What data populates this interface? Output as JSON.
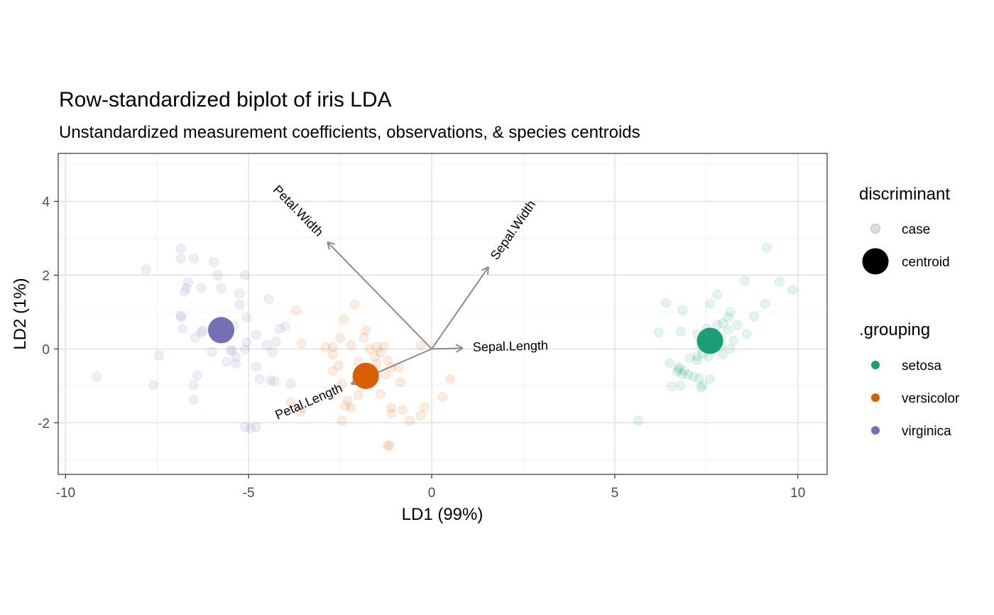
{
  "chart_data": {
    "type": "scatter",
    "title": "Row-standardized biplot of iris LDA",
    "subtitle": "Unstandardized measurement coefficients, observations, & species centroids",
    "xlabel": "LD1 (99%)",
    "ylabel": "LD2 (1%)",
    "xlim": [
      -10.2,
      10.8
    ],
    "ylim": [
      -3.4,
      5.3
    ],
    "x_ticks": [
      -10,
      -5,
      0,
      5,
      10
    ],
    "x_tick_labels": [
      "-10",
      "-5",
      "0",
      "5",
      "10"
    ],
    "y_ticks": [
      -2,
      0,
      2,
      4
    ],
    "y_tick_labels": [
      "-2",
      "0",
      "2",
      "4"
    ],
    "grid": true,
    "legend_position": "right",
    "legends": [
      {
        "title": "discriminant",
        "entries": [
          {
            "label": "case",
            "shape": "small-point",
            "color": "#bdbdbd"
          },
          {
            "label": "centroid",
            "shape": "large-point",
            "color": "#000000"
          }
        ]
      },
      {
        "title": ".grouping",
        "entries": [
          {
            "label": "setosa",
            "color": "#1b9e77"
          },
          {
            "label": "versicolor",
            "color": "#d95f02"
          },
          {
            "label": "virginica",
            "color": "#7570b3"
          }
        ]
      }
    ],
    "colors": {
      "setosa": "#1b9e77",
      "versicolor": "#d95f02",
      "virginica": "#7570b3",
      "arrow": "#8c8c8c"
    },
    "centroids": [
      {
        "group": "setosa",
        "x": 7.6,
        "y": 0.22
      },
      {
        "group": "versicolor",
        "x": -1.8,
        "y": -0.73
      },
      {
        "group": "virginica",
        "x": -5.75,
        "y": 0.51
      }
    ],
    "arrows": [
      {
        "label": "Petal.Width",
        "x": -2.85,
        "y": 2.9
      },
      {
        "label": "Sepal.Width",
        "x": 1.55,
        "y": 2.22
      },
      {
        "label": "Sepal.Length",
        "x": 0.85,
        "y": 0.02
      },
      {
        "label": "Petal.Length",
        "x": -2.2,
        "y": -0.95
      }
    ],
    "series": [
      {
        "group": "setosa",
        "points": [
          [
            9.15,
            2.75
          ],
          [
            9.5,
            1.82
          ],
          [
            9.85,
            1.6
          ],
          [
            8.55,
            1.85
          ],
          [
            7.8,
            1.47
          ],
          [
            7.6,
            1.22
          ],
          [
            6.4,
            1.25
          ],
          [
            6.85,
            1.05
          ],
          [
            9.1,
            1.22
          ],
          [
            8.15,
            1.0
          ],
          [
            8.1,
            0.85
          ],
          [
            7.95,
            0.7
          ],
          [
            8.1,
            0.52
          ],
          [
            7.8,
            0.65
          ],
          [
            8.35,
            0.65
          ],
          [
            8.8,
            0.88
          ],
          [
            6.2,
            0.45
          ],
          [
            6.8,
            0.47
          ],
          [
            7.25,
            0.4
          ],
          [
            7.5,
            0.55
          ],
          [
            7.7,
            0.4
          ],
          [
            7.8,
            0.25
          ],
          [
            7.9,
            0.3
          ],
          [
            8.25,
            0.22
          ],
          [
            8.6,
            0.4
          ],
          [
            7.4,
            0.17
          ],
          [
            7.35,
            0.05
          ],
          [
            7.9,
            0.08
          ],
          [
            7.4,
            -0.12
          ],
          [
            7.55,
            -0.2
          ],
          [
            7.25,
            -0.3
          ],
          [
            6.5,
            -0.38
          ],
          [
            6.75,
            -0.5
          ],
          [
            7.05,
            -0.25
          ],
          [
            7.25,
            -0.2
          ],
          [
            7.95,
            -0.15
          ],
          [
            6.7,
            -0.62
          ],
          [
            6.85,
            -0.68
          ],
          [
            7.0,
            -0.7
          ],
          [
            7.3,
            -0.8
          ],
          [
            7.4,
            -0.98
          ],
          [
            7.35,
            -1.05
          ],
          [
            6.55,
            -1.02
          ],
          [
            6.8,
            -1.0
          ],
          [
            7.6,
            -0.82
          ],
          [
            5.65,
            -1.95
          ],
          [
            6.75,
            -0.55
          ],
          [
            6.9,
            -0.6
          ],
          [
            7.15,
            -0.75
          ],
          [
            8.15,
            0.0
          ]
        ]
      },
      {
        "group": "versicolor",
        "points": [
          [
            -3.7,
            1.05
          ],
          [
            -2.4,
            0.8
          ],
          [
            -2.1,
            1.2
          ],
          [
            -1.8,
            0.5
          ],
          [
            -1.85,
            0.3
          ],
          [
            -2.5,
            0.3
          ],
          [
            -2.9,
            0.05
          ],
          [
            -2.7,
            0.05
          ],
          [
            -3.55,
            0.15
          ],
          [
            -2.2,
            0.1
          ],
          [
            -1.5,
            0.05
          ],
          [
            -1.3,
            0.08
          ],
          [
            -0.3,
            0.1
          ],
          [
            -1.4,
            -0.1
          ],
          [
            -1.2,
            -0.3
          ],
          [
            -1.5,
            -0.4
          ],
          [
            -2.0,
            -0.35
          ],
          [
            -1.6,
            -0.55
          ],
          [
            -1.1,
            -0.5
          ],
          [
            -0.9,
            -0.5
          ],
          [
            -2.7,
            -0.15
          ],
          [
            -2.55,
            -0.45
          ],
          [
            -2.7,
            -0.6
          ],
          [
            -2.45,
            -0.95
          ],
          [
            -1.7,
            -0.55
          ],
          [
            -1.25,
            -0.7
          ],
          [
            -0.85,
            -0.9
          ],
          [
            -1.4,
            -1.22
          ],
          [
            -2.0,
            -1.25
          ],
          [
            -2.3,
            -1.4
          ],
          [
            -2.2,
            -1.6
          ],
          [
            -2.35,
            -1.55
          ],
          [
            -2.45,
            -1.95
          ],
          [
            -1.1,
            -1.6
          ],
          [
            -1.1,
            -1.75
          ],
          [
            -0.8,
            -1.65
          ],
          [
            -0.6,
            -1.95
          ],
          [
            -0.3,
            -1.8
          ],
          [
            -0.2,
            -1.58
          ],
          [
            0.3,
            -1.3
          ],
          [
            0.5,
            -0.82
          ],
          [
            -1.15,
            -2.62
          ],
          [
            -1.2,
            -2.62
          ],
          [
            -3.55,
            -1.6
          ],
          [
            -3.85,
            -1.45
          ],
          [
            -3.6,
            -1.7
          ],
          [
            -4.3,
            -0.88
          ],
          [
            -1.55,
            -0.2
          ],
          [
            -1.7,
            0.0
          ],
          [
            -2.05,
            -0.8
          ]
        ]
      },
      {
        "group": "virginica",
        "points": [
          [
            -6.85,
            2.72
          ],
          [
            -6.85,
            2.45
          ],
          [
            -6.5,
            2.45
          ],
          [
            -5.95,
            2.35
          ],
          [
            -7.8,
            2.15
          ],
          [
            -5.85,
            2.0
          ],
          [
            -5.1,
            2.0
          ],
          [
            -6.65,
            1.8
          ],
          [
            -6.7,
            1.65
          ],
          [
            -6.75,
            1.55
          ],
          [
            -6.3,
            1.65
          ],
          [
            -5.75,
            1.65
          ],
          [
            -5.25,
            1.5
          ],
          [
            -4.45,
            1.35
          ],
          [
            -5.25,
            1.2
          ],
          [
            -6.85,
            0.9
          ],
          [
            -6.85,
            0.85
          ],
          [
            -5.05,
            0.85
          ],
          [
            -6.25,
            0.5
          ],
          [
            -6.8,
            0.55
          ],
          [
            -5.4,
            0.62
          ],
          [
            -4.15,
            0.55
          ],
          [
            -4.0,
            0.62
          ],
          [
            -4.8,
            0.38
          ],
          [
            -4.25,
            0.2
          ],
          [
            -4.5,
            0.1
          ],
          [
            -6.3,
            0.45
          ],
          [
            -6.45,
            0.3
          ],
          [
            -5.5,
            -0.02
          ],
          [
            -5.45,
            -0.05
          ],
          [
            -5.1,
            -0.02
          ],
          [
            -5.05,
            0.18
          ],
          [
            -6.0,
            -0.08
          ],
          [
            -5.35,
            -0.22
          ],
          [
            -5.6,
            -0.35
          ],
          [
            -5.35,
            -0.4
          ],
          [
            -4.8,
            -0.48
          ],
          [
            -4.35,
            -0.08
          ],
          [
            -7.45,
            -0.18
          ],
          [
            -9.15,
            -0.75
          ],
          [
            -7.6,
            -0.98
          ],
          [
            -6.4,
            -0.72
          ],
          [
            -6.5,
            -0.98
          ],
          [
            -6.5,
            -1.38
          ],
          [
            -4.7,
            -0.82
          ],
          [
            -4.4,
            -0.85
          ],
          [
            -3.85,
            -0.95
          ],
          [
            -5.1,
            -2.12
          ],
          [
            -4.95,
            -2.15
          ],
          [
            -4.8,
            -2.12
          ]
        ]
      }
    ]
  }
}
